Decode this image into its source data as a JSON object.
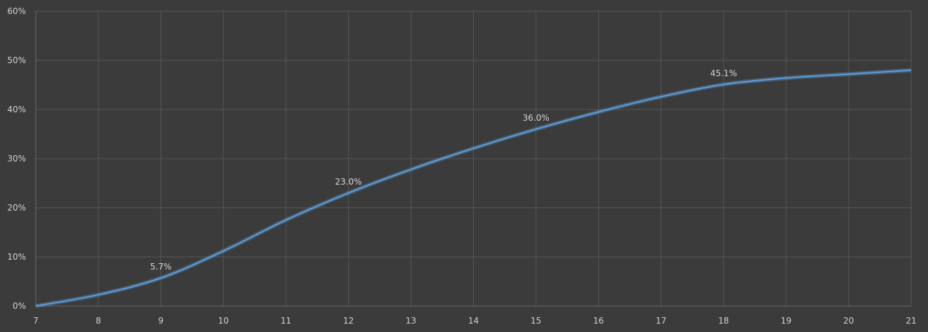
{
  "chart_data": {
    "type": "line",
    "title": "",
    "xlabel": "",
    "ylabel": "",
    "x": [
      7,
      8,
      9,
      10,
      11,
      12,
      13,
      14,
      15,
      16,
      17,
      18,
      19,
      20,
      21
    ],
    "series": [
      {
        "values": [
          0.0,
          2.3,
          5.7,
          11.2,
          17.5,
          23.0,
          27.8,
          32.1,
          36.0,
          39.5,
          42.6,
          45.1,
          46.4,
          47.2,
          48.0
        ],
        "color": "#5b9bd5"
      }
    ],
    "data_labels": [
      {
        "x": 9,
        "value": 5.7,
        "text": "5.7%"
      },
      {
        "x": 12,
        "value": 23.0,
        "text": "23.0%"
      },
      {
        "x": 15,
        "value": 36.0,
        "text": "36.0%"
      },
      {
        "x": 18,
        "value": 45.1,
        "text": "45.1%"
      }
    ],
    "xlim": [
      7,
      21
    ],
    "ylim": [
      0,
      60
    ],
    "x_ticks": [
      "7",
      "8",
      "9",
      "10",
      "11",
      "12",
      "13",
      "14",
      "15",
      "16",
      "17",
      "18",
      "19",
      "20",
      "21"
    ],
    "y_ticks": [
      {
        "value": 0,
        "label": "0%"
      },
      {
        "value": 10,
        "label": "10%"
      },
      {
        "value": 20,
        "label": "20%"
      },
      {
        "value": 30,
        "label": "30%"
      },
      {
        "value": 40,
        "label": "40%"
      },
      {
        "value": 50,
        "label": "50%"
      },
      {
        "value": 60,
        "label": "60%"
      }
    ],
    "grid": true,
    "legend": "none",
    "colors": {
      "background": "#3b3b3b",
      "grid": "#575757",
      "text": "#d2d2d2"
    }
  }
}
